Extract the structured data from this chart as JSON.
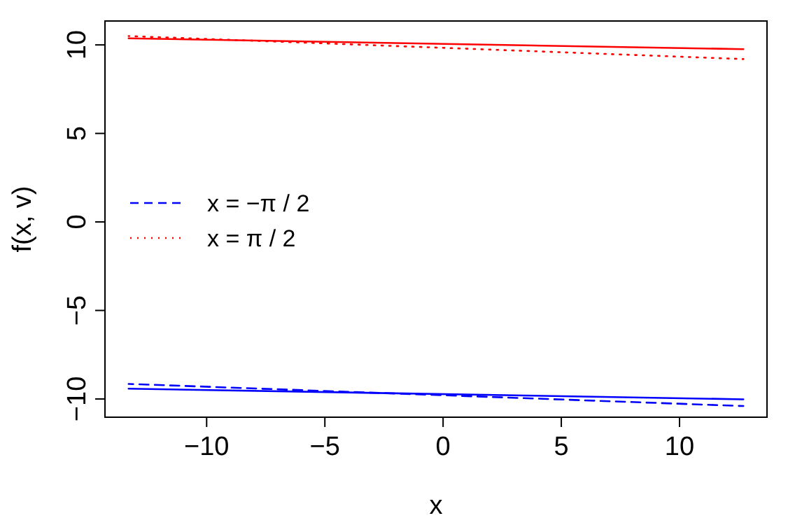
{
  "chart_data": {
    "type": "line",
    "xlabel": "x",
    "ylabel": "f(x, v)",
    "xlim": [
      -14.3,
      13.7
    ],
    "ylim": [
      -11.03,
      11.35
    ],
    "xticks": [
      -10,
      -5,
      0,
      5,
      10
    ],
    "yticks": [
      -10,
      -5,
      0,
      5,
      10
    ],
    "grid": false,
    "legend": "left",
    "x": [
      -13.3,
      12.7
    ],
    "series": [
      {
        "color": "#ff0000",
        "values": [
          10.37,
          9.76
        ],
        "line_style": "solid"
      },
      {
        "name": "x = π / 2",
        "color": "#ff0000",
        "values": [
          10.5,
          9.2
        ],
        "line_style": "dotted"
      },
      {
        "color": "#0000ff",
        "values": [
          -9.42,
          -10.02
        ],
        "line_style": "solid"
      },
      {
        "name": "x = −π / 2",
        "color": "#0000ff",
        "values": [
          -9.15,
          -10.4
        ],
        "line_style": "dashed"
      }
    ]
  }
}
